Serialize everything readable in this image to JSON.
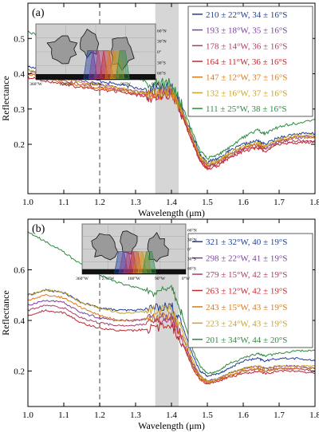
{
  "chart_data": [
    {
      "type": "line",
      "panel_label": "(a)",
      "xlabel": "Wavelength (μm)",
      "ylabel": "Reflectance",
      "xlim": [
        1.0,
        1.8
      ],
      "ylim": [
        0.06,
        0.6
      ],
      "x_ticks": [
        "1.0",
        "1.1",
        "1.2",
        "1.3",
        "1.4",
        "1.5",
        "1.6",
        "1.7",
        "1.8"
      ],
      "y_ticks": [
        "0.2",
        "0.3",
        "0.4",
        "0.5"
      ],
      "vline_x": 1.2,
      "shaded_band": [
        1.355,
        1.42
      ],
      "grid": false,
      "legend_position": "top-right",
      "x": [
        1.0,
        1.05,
        1.1,
        1.15,
        1.2,
        1.25,
        1.3,
        1.35,
        1.4,
        1.43,
        1.46,
        1.48,
        1.5,
        1.53,
        1.56,
        1.6,
        1.64,
        1.66,
        1.7,
        1.75,
        1.8
      ],
      "series": [
        {
          "name": "210 ± 22°W, 34 ± 16°S",
          "color": "#1f3f9a",
          "values": [
            0.42,
            0.41,
            0.4,
            0.39,
            0.38,
            0.37,
            0.36,
            0.355,
            0.36,
            0.3,
            0.22,
            0.17,
            0.15,
            0.16,
            0.18,
            0.2,
            0.21,
            0.2,
            0.22,
            0.23,
            0.23
          ]
        },
        {
          "name": "193 ± 18°W, 35 ± 16°S",
          "color": "#7b3f9e",
          "values": [
            0.41,
            0.4,
            0.39,
            0.38,
            0.37,
            0.36,
            0.35,
            0.345,
            0.35,
            0.29,
            0.21,
            0.16,
            0.14,
            0.15,
            0.17,
            0.19,
            0.2,
            0.19,
            0.21,
            0.22,
            0.22
          ]
        },
        {
          "name": "178 ± 14°W, 36 ± 16°S",
          "color": "#b03a6a",
          "values": [
            0.4,
            0.39,
            0.38,
            0.37,
            0.36,
            0.355,
            0.345,
            0.34,
            0.345,
            0.285,
            0.205,
            0.155,
            0.135,
            0.145,
            0.165,
            0.185,
            0.195,
            0.185,
            0.205,
            0.21,
            0.21
          ]
        },
        {
          "name": "164 ± 11°W, 36 ± 16°S",
          "color": "#c0282e",
          "values": [
            0.39,
            0.38,
            0.37,
            0.36,
            0.355,
            0.35,
            0.34,
            0.335,
            0.34,
            0.28,
            0.2,
            0.15,
            0.13,
            0.14,
            0.16,
            0.18,
            0.19,
            0.18,
            0.2,
            0.205,
            0.205
          ]
        },
        {
          "name": "147 ± 12°W, 37 ± 16°S",
          "color": "#d97a1a",
          "values": [
            0.4,
            0.39,
            0.375,
            0.365,
            0.36,
            0.355,
            0.345,
            0.34,
            0.35,
            0.29,
            0.21,
            0.16,
            0.14,
            0.15,
            0.17,
            0.19,
            0.2,
            0.19,
            0.21,
            0.22,
            0.22
          ]
        },
        {
          "name": "132 ± 16°W, 37 ± 16°S",
          "color": "#c9a227",
          "values": [
            0.41,
            0.4,
            0.385,
            0.375,
            0.37,
            0.36,
            0.35,
            0.345,
            0.355,
            0.295,
            0.215,
            0.165,
            0.145,
            0.155,
            0.175,
            0.195,
            0.205,
            0.195,
            0.215,
            0.225,
            0.225
          ]
        },
        {
          "name": "111 ± 25°W, 38 ± 16°S",
          "color": "#2e8b3e",
          "values": [
            0.52,
            0.5,
            0.48,
            0.45,
            0.43,
            0.41,
            0.39,
            0.37,
            0.37,
            0.31,
            0.23,
            0.18,
            0.16,
            0.17,
            0.19,
            0.22,
            0.24,
            0.23,
            0.25,
            0.26,
            0.27
          ]
        }
      ],
      "inset_map": {
        "lon_labels": [
          "360°W",
          "270°W",
          "180°W",
          "90°W",
          "0°W"
        ],
        "lat_labels": [
          "60°N",
          "30°N",
          "0°",
          "30°S",
          "60°S"
        ]
      }
    },
    {
      "type": "line",
      "panel_label": "(b)",
      "xlabel": "Wavelength (μm)",
      "ylabel": "Reflectance",
      "xlim": [
        1.0,
        1.8
      ],
      "ylim": [
        0.06,
        0.8
      ],
      "x_ticks": [
        "1.0",
        "1.1",
        "1.2",
        "1.3",
        "1.4",
        "1.5",
        "1.6",
        "1.7",
        "1.8"
      ],
      "y_ticks": [
        "0.2",
        "0.4",
        "0.6"
      ],
      "vline_x": 1.2,
      "shaded_band": [
        1.355,
        1.42
      ],
      "grid": false,
      "legend_position": "right",
      "x": [
        1.0,
        1.05,
        1.1,
        1.15,
        1.2,
        1.25,
        1.3,
        1.35,
        1.4,
        1.43,
        1.46,
        1.48,
        1.5,
        1.53,
        1.56,
        1.6,
        1.64,
        1.66,
        1.7,
        1.75,
        1.8
      ],
      "series": [
        {
          "name": "321 ± 32°W, 40 ± 19°S",
          "color": "#1f3f9a",
          "values": [
            0.5,
            0.52,
            0.51,
            0.47,
            0.45,
            0.44,
            0.44,
            0.45,
            0.46,
            0.38,
            0.26,
            0.2,
            0.18,
            0.19,
            0.21,
            0.24,
            0.25,
            0.24,
            0.25,
            0.25,
            0.24
          ]
        },
        {
          "name": "298 ± 22°W, 41 ± 19°S",
          "color": "#7b3f9e",
          "values": [
            0.46,
            0.48,
            0.47,
            0.43,
            0.41,
            0.4,
            0.4,
            0.41,
            0.42,
            0.34,
            0.23,
            0.18,
            0.16,
            0.17,
            0.19,
            0.21,
            0.22,
            0.21,
            0.22,
            0.22,
            0.21
          ]
        },
        {
          "name": "279 ± 15°W, 42 ± 19°S",
          "color": "#b03a6a",
          "values": [
            0.44,
            0.46,
            0.45,
            0.41,
            0.39,
            0.38,
            0.38,
            0.39,
            0.4,
            0.32,
            0.22,
            0.17,
            0.155,
            0.165,
            0.18,
            0.2,
            0.21,
            0.2,
            0.21,
            0.21,
            0.2
          ]
        },
        {
          "name": "263 ± 12°W, 42 ± 19°S",
          "color": "#c0282e",
          "values": [
            0.42,
            0.44,
            0.43,
            0.39,
            0.37,
            0.36,
            0.36,
            0.37,
            0.38,
            0.31,
            0.21,
            0.165,
            0.15,
            0.16,
            0.175,
            0.19,
            0.2,
            0.19,
            0.2,
            0.2,
            0.19
          ]
        },
        {
          "name": "243 ± 15°W, 43 ± 19°S",
          "color": "#d97a1a",
          "values": [
            0.48,
            0.5,
            0.49,
            0.45,
            0.42,
            0.4,
            0.4,
            0.41,
            0.42,
            0.34,
            0.22,
            0.17,
            0.155,
            0.165,
            0.18,
            0.2,
            0.21,
            0.2,
            0.21,
            0.21,
            0.21
          ]
        },
        {
          "name": "223 ± 24°W, 43 ± 19°S",
          "color": "#c9a227",
          "values": [
            0.5,
            0.52,
            0.51,
            0.47,
            0.45,
            0.43,
            0.43,
            0.44,
            0.45,
            0.36,
            0.24,
            0.18,
            0.16,
            0.17,
            0.19,
            0.21,
            0.22,
            0.21,
            0.22,
            0.22,
            0.22
          ]
        },
        {
          "name": "201 ± 34°W, 44 ± 20°S",
          "color": "#2e8b3e",
          "values": [
            0.75,
            0.71,
            0.67,
            0.62,
            0.58,
            0.55,
            0.53,
            0.51,
            0.53,
            0.42,
            0.28,
            0.22,
            0.19,
            0.2,
            0.23,
            0.25,
            0.27,
            0.26,
            0.27,
            0.28,
            0.28
          ]
        }
      ],
      "inset_map": {
        "lon_labels": [
          "360°W",
          "270°W",
          "180°W",
          "90°W",
          "0°W"
        ],
        "lat_labels": [
          "60°N",
          "30°N",
          "0°",
          "30°S",
          "60°S"
        ]
      }
    }
  ]
}
